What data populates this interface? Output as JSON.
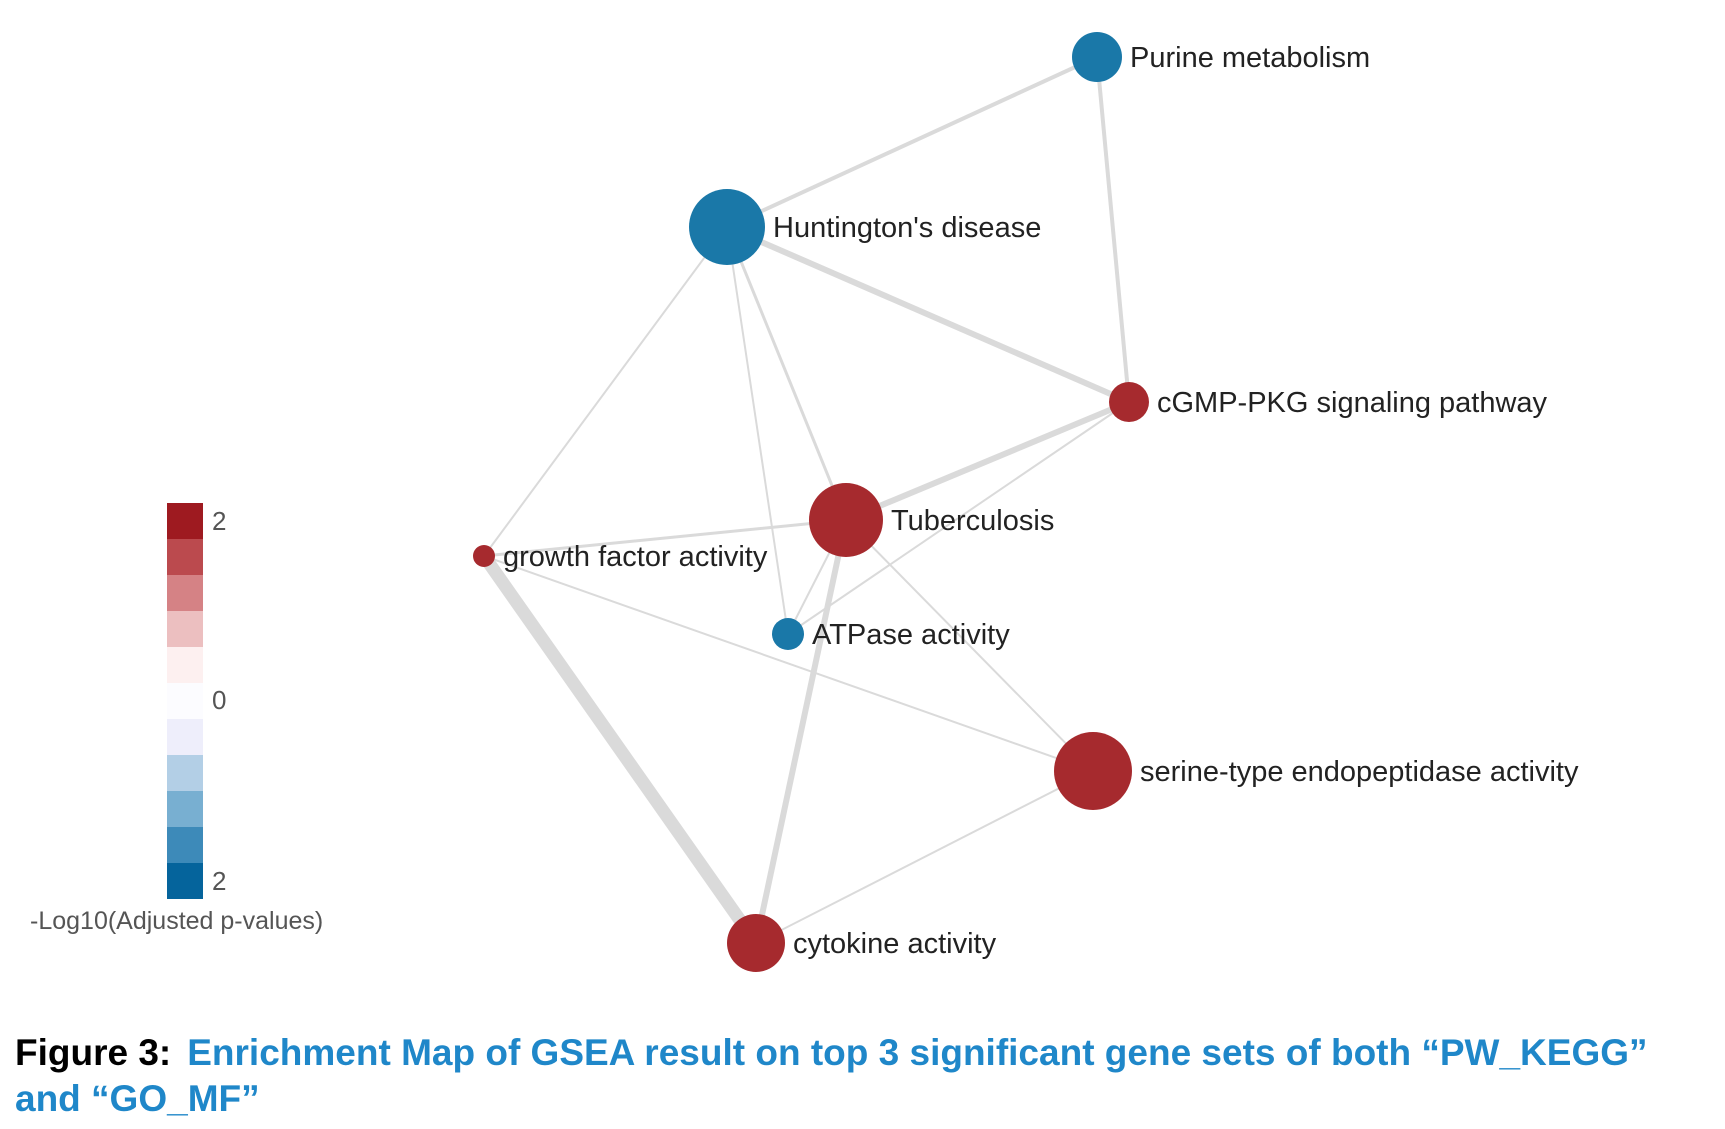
{
  "colors": {
    "positive": "#a62a2e",
    "negative": "#1a78a8",
    "edge": "#dadada",
    "label": "#222222",
    "caption_title": "#1f87c9"
  },
  "nodes": [
    {
      "id": "purine",
      "label": "Purine metabolism",
      "group": "negative"
    },
    {
      "id": "huntington",
      "label": "Huntington's disease",
      "group": "negative"
    },
    {
      "id": "cgmp",
      "label": "cGMP-PKG signaling pathway",
      "group": "positive"
    },
    {
      "id": "tuberculosis",
      "label": "Tuberculosis",
      "group": "positive"
    },
    {
      "id": "growth",
      "label": "growth factor activity",
      "group": "positive"
    },
    {
      "id": "atpase",
      "label": "ATPase activity",
      "group": "negative"
    },
    {
      "id": "serine",
      "label": "serine-type endopeptidase activity",
      "group": "positive"
    },
    {
      "id": "cytokine",
      "label": "cytokine activity",
      "group": "positive"
    }
  ],
  "edges": [
    {
      "source": "purine",
      "target": "huntington"
    },
    {
      "source": "purine",
      "target": "cgmp"
    },
    {
      "source": "huntington",
      "target": "cgmp"
    },
    {
      "source": "huntington",
      "target": "growth"
    },
    {
      "source": "huntington",
      "target": "tuberculosis"
    },
    {
      "source": "huntington",
      "target": "atpase"
    },
    {
      "source": "cgmp",
      "target": "tuberculosis"
    },
    {
      "source": "cgmp",
      "target": "atpase"
    },
    {
      "source": "tuberculosis",
      "target": "growth"
    },
    {
      "source": "tuberculosis",
      "target": "atpase"
    },
    {
      "source": "tuberculosis",
      "target": "cytokine"
    },
    {
      "source": "tuberculosis",
      "target": "serine"
    },
    {
      "source": "growth",
      "target": "serine"
    },
    {
      "source": "growth",
      "target": "cytokine"
    },
    {
      "source": "serine",
      "target": "cytokine"
    }
  ],
  "legend": {
    "title": "-Log10(Adjusted p-values)",
    "tick_top": "2",
    "tick_mid": "0",
    "tick_bottom": "2",
    "scale_colors": [
      "#9e1a20",
      "#bb4a4e",
      "#d58285",
      "#ecbfc0",
      "#fdf0f0",
      "#fcfcff",
      "#eeeefb",
      "#b3cfe6",
      "#78afd1",
      "#3d8ab9",
      "#05649c"
    ]
  },
  "caption": {
    "label": "Figure 3:",
    "text": "Enrichment Map of GSEA result on top 3 significant gene sets of both “PW_KEGG” and “GO_MF”"
  }
}
